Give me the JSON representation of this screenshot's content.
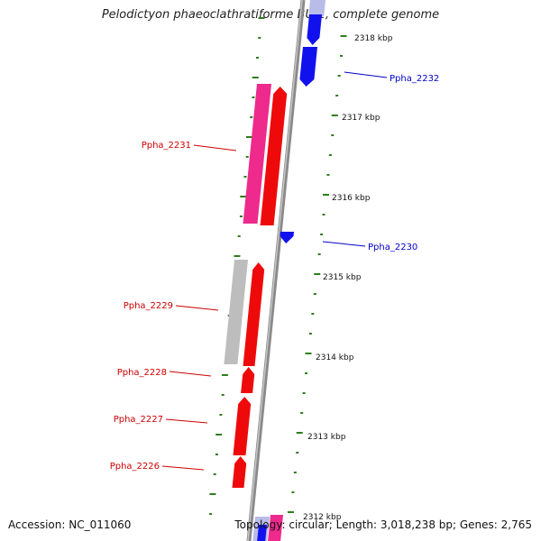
{
  "title": "Pelodictyon phaeoclathratiforme BU-1, complete genome",
  "footer": {
    "accession": "Accession: NC_011060",
    "topology": "Topology: circular; Length: 3,018,238 bp; Genes: 2,765"
  },
  "colors": {
    "backbone": "#8a8a8a",
    "tick": "#2e7d1f",
    "forward_gene": "#ee0a0a",
    "forward_label": "#cc0000",
    "reverse_gene": "#1111ee",
    "reverse_label": "#0000cc",
    "pink_feature": "#ee2a8c",
    "gray_feature": "#bdbdbd",
    "light_blue_feature": "#b8bce8"
  },
  "scale_labels": [
    "2318 kbp",
    "2317 kbp",
    "2316 kbp",
    "2315 kbp",
    "2314 kbp",
    "2313 kbp",
    "2312 kbp"
  ],
  "gene_labels": [
    {
      "name": "Ppha_2232",
      "strand": "reverse"
    },
    {
      "name": "Ppha_2231",
      "strand": "forward"
    },
    {
      "name": "Ppha_2230",
      "strand": "reverse"
    },
    {
      "name": "Ppha_2229",
      "strand": "forward"
    },
    {
      "name": "Ppha_2228",
      "strand": "forward"
    },
    {
      "name": "Ppha_2227",
      "strand": "forward"
    },
    {
      "name": "Ppha_2226",
      "strand": "forward"
    }
  ]
}
